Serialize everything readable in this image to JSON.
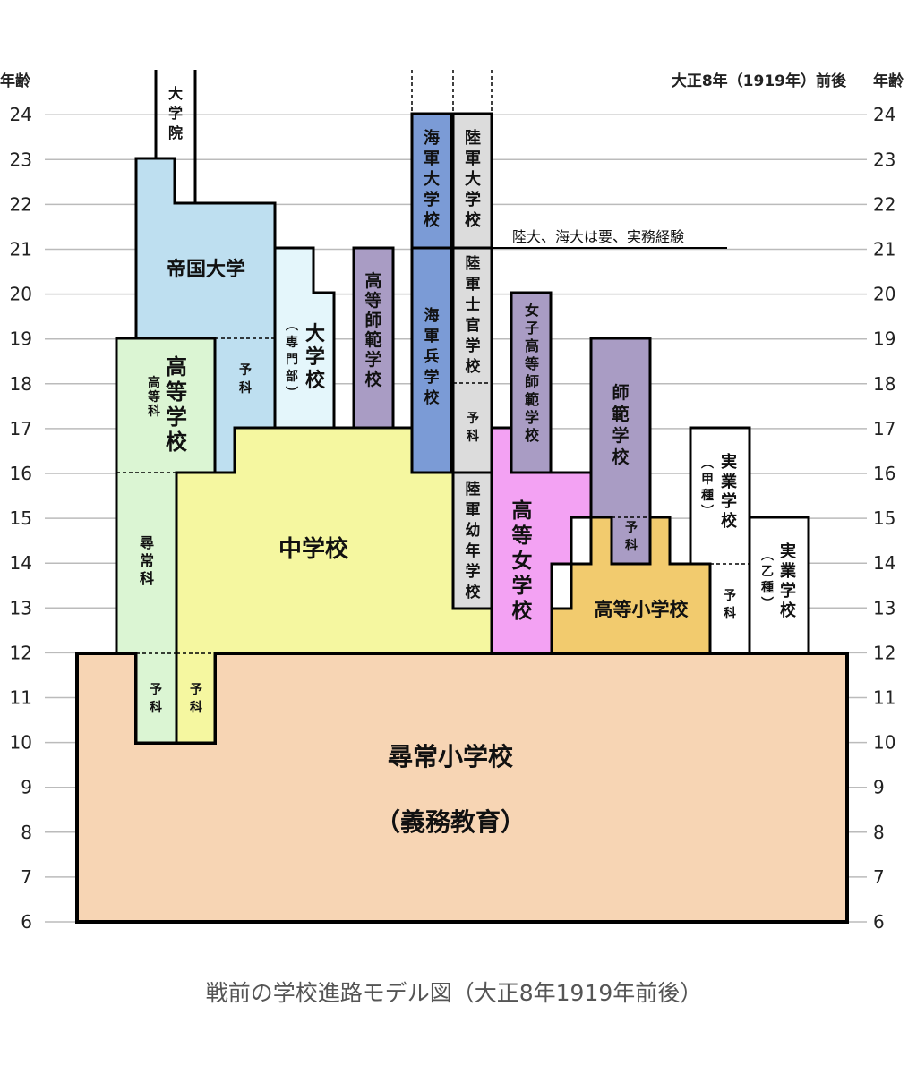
{
  "header": {
    "left_axis_title": "年齢",
    "right_axis_title": "年齢",
    "era_label": "大正8年（1919年）前後"
  },
  "axis": {
    "min": 6,
    "max": 24,
    "ticks": [
      6,
      7,
      8,
      9,
      10,
      11,
      12,
      13,
      14,
      15,
      16,
      17,
      18,
      19,
      20,
      21,
      22,
      23,
      24
    ]
  },
  "note": "陸大、海大は要、実務経験",
  "colors": {
    "elementary": "#f7d5b4",
    "middle": "#f5f7a0",
    "higher_school": "#dbf5d3",
    "imperial_univ": "#bedff0",
    "college": "#e4f6fb",
    "normal_higher": "#a99cc4",
    "navy": "#7b9bd6",
    "army": "#dcdcdc",
    "girls_high": "#f3a2f3",
    "higher_elementary": "#f2cb6e",
    "normal": "#a99cc4",
    "vocational": "#ffffff"
  },
  "labels": {
    "graduate": "大学院",
    "imperial_univ": "帝国大学",
    "higher_school": "高等学校",
    "higher_course": "高等科",
    "ordinary_course": "尋常科",
    "prep": "予科",
    "college": "大学校",
    "college_sub": "（専門部）",
    "normal_higher": "高等師範学校",
    "navy_war_college": "海軍大学校",
    "navy_academy": "海軍兵学校",
    "army_war_college": "陸軍大学校",
    "army_academy": "陸軍士官学校",
    "army_prep": "予科",
    "army_youth": "陸軍幼年学校",
    "women_normal_higher": "女子高等師範学校",
    "normal": "師範学校",
    "middle": "中学校",
    "girls_high": "高等女学校",
    "higher_elementary": "高等小学校",
    "normal_prep": "予科",
    "voc_a": "実業学校",
    "voc_a_sub": "（甲種）",
    "voc_a_prep": "予科",
    "voc_b": "実業学校",
    "voc_b_sub": "（乙種）",
    "elementary": "尋常小学校",
    "elementary_sub": "（義務教育）"
  },
  "caption": "戦前の学校進路モデル図（大正8年1919年前後）"
}
